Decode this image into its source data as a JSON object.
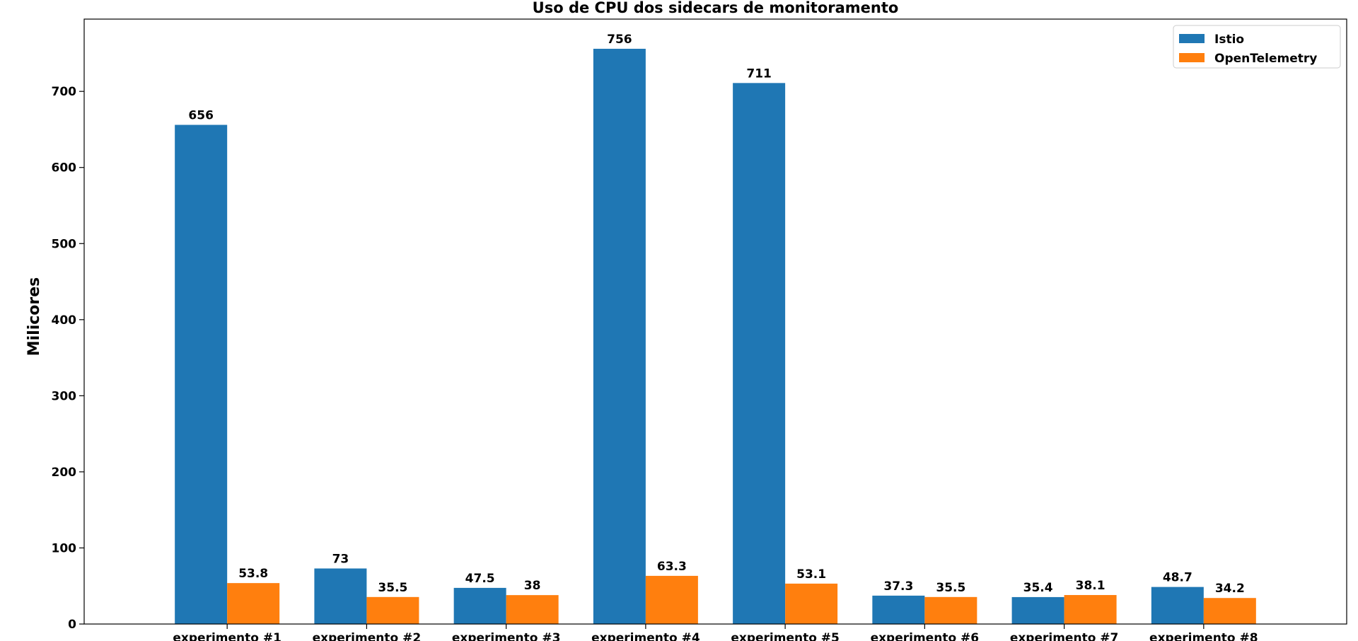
{
  "chart_data": {
    "type": "bar",
    "title": "Uso de CPU dos sidecars de monitoramento",
    "xlabel": "",
    "ylabel": "Milicores",
    "categories": [
      "experimento #1",
      "experimento #2",
      "experimento #3",
      "experimento #4",
      "experimento #5",
      "experimento #6",
      "experimento #7",
      "experimento #8"
    ],
    "series": [
      {
        "name": "Istio",
        "color": "#1f77b4",
        "values": [
          656,
          73,
          47.5,
          756,
          711,
          37.3,
          35.4,
          48.7
        ],
        "labels": [
          "656",
          "73",
          "47.5",
          "756",
          "711",
          "37.3",
          "35.4",
          "48.7"
        ]
      },
      {
        "name": "OpenTelemetry",
        "color": "#ff7f0e",
        "values": [
          53.8,
          35.5,
          38,
          63.3,
          53.1,
          35.5,
          38.1,
          34.2
        ],
        "labels": [
          "53.8",
          "35.5",
          "38",
          "63.3",
          "53.1",
          "35.5",
          "38.1",
          "34.2"
        ]
      }
    ],
    "ylim": [
      0,
      795
    ],
    "yticks": [
      0,
      100,
      200,
      300,
      400,
      500,
      600,
      700
    ],
    "ytick_labels": [
      "0",
      "100",
      "200",
      "300",
      "400",
      "500",
      "600",
      "700"
    ],
    "grid": false,
    "legend_position": "top-right"
  }
}
